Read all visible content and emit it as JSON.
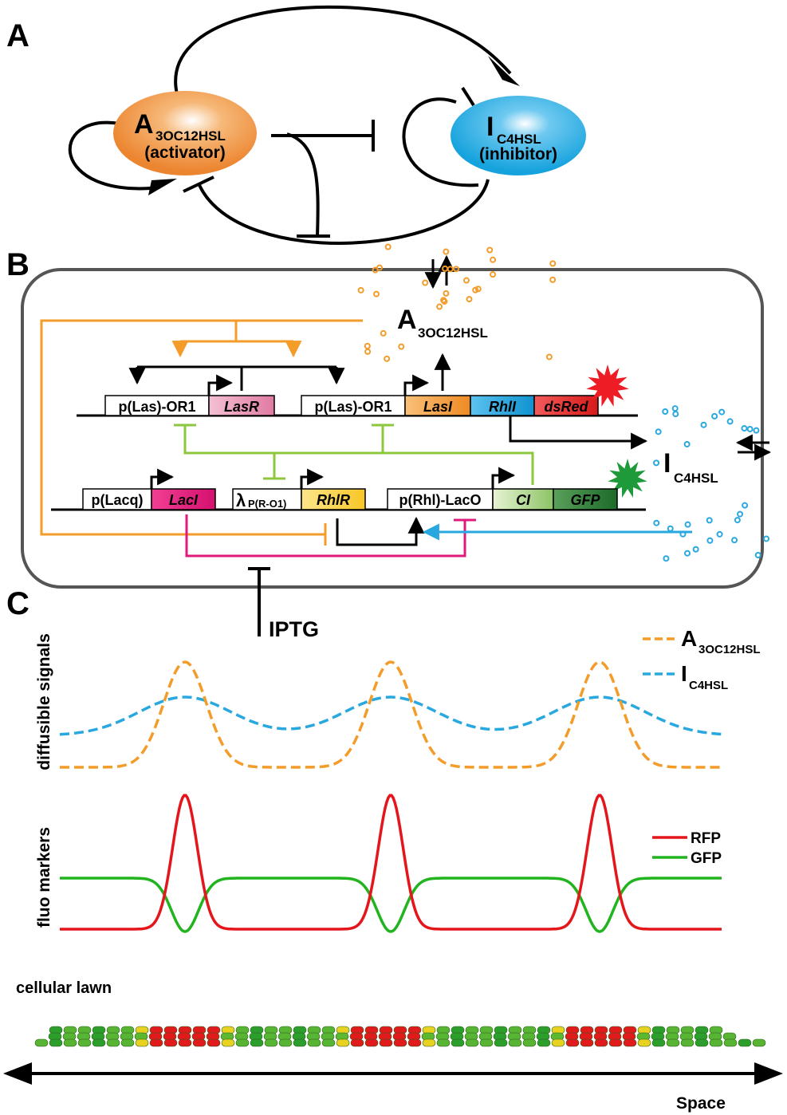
{
  "panels": {
    "a": "A",
    "b": "B",
    "c": "C"
  },
  "panel_a": {
    "activator": {
      "main": "A",
      "sub": "3OC12HSL",
      "role": "(activator)",
      "color": "#ef8a2b"
    },
    "inhibitor": {
      "main": "I",
      "sub": "C4HSL",
      "role": "(inhibitor)",
      "color": "#1aa7e0"
    }
  },
  "panel_b": {
    "signal_a": {
      "main": "A",
      "sub": "3OC12HSL"
    },
    "signal_i": {
      "main": "I",
      "sub": "C4HSL"
    },
    "inducer": "IPTG",
    "top_genes": [
      "p(Las)-OR1",
      "LasR",
      "p(Las)-OR1",
      "LasI",
      "RhlI",
      "dsRed"
    ],
    "bottom_genes": [
      "p(Lacq)",
      "LacI",
      "λ",
      "P(R-O1)",
      "RhlR",
      "p(Rhl)-LacO",
      "CI",
      "GFP"
    ],
    "colors": {
      "orange": "#f39c2a",
      "blue": "#29a8df",
      "magenta": "#e0197c",
      "green": "#8dc63f",
      "black": "#000000"
    }
  },
  "panel_c": {
    "signals_ylabel": "diffusible signals",
    "markers_ylabel": "fluo markers",
    "legend_signals": [
      {
        "main": "A",
        "sub": "3OC12HSL",
        "color": "#f39c2a"
      },
      {
        "main": "I",
        "sub": "C4HSL",
        "color": "#29a8df"
      }
    ],
    "legend_markers": [
      {
        "label": "RFP",
        "color": "#e4161b"
      },
      {
        "label": "GFP",
        "color": "#22b41e"
      }
    ],
    "lawn_label": "cellular lawn",
    "x_axis_label": "Space",
    "peaks": 3
  }
}
